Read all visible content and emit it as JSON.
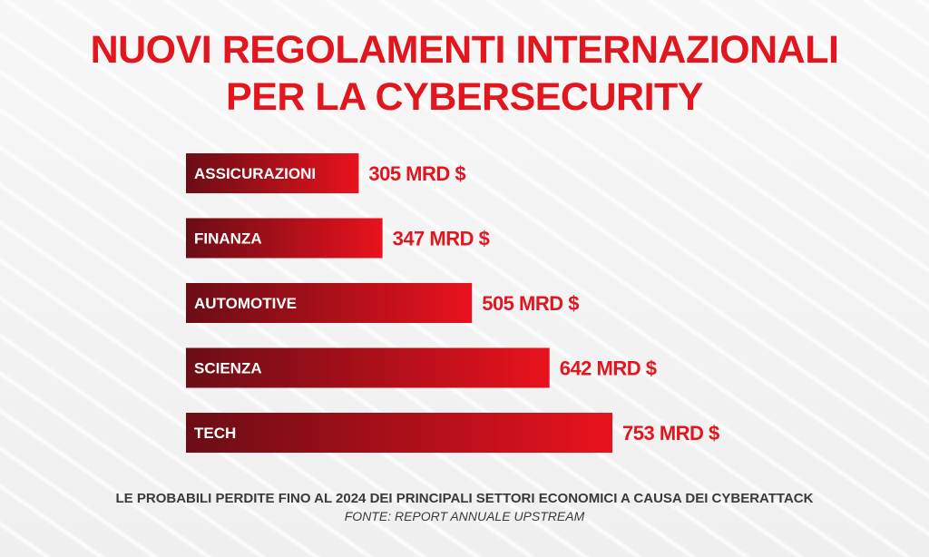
{
  "colors": {
    "accent": "#e2161f",
    "bar_dark": "#6b0d16",
    "bar_light": "#e8121d",
    "text_dark": "#3a3a3a"
  },
  "chart_data": {
    "type": "bar",
    "orientation": "horizontal",
    "title": [
      "NUOVI REGOLAMENTI INTERNAZIONALI",
      "PER LA CYBERSECURITY"
    ],
    "categories": [
      "ASSICURAZIONI",
      "FINANZA",
      "AUTOMOTIVE",
      "SCIENZA",
      "TECH"
    ],
    "values": [
      305,
      347,
      505,
      642,
      753
    ],
    "value_labels": [
      "305 MRD $",
      "347 MRD $",
      "505 MRD $",
      "642 MRD $",
      "753 MRD $"
    ],
    "unit": "MRD $",
    "xlim": [
      0,
      753
    ],
    "grid": false,
    "legend": "none",
    "subtitle": "LE PROBABILI PERDITE FINO AL 2024 DEI PRINCIPALI  SETTORI ECONOMICI A CAUSA DEI CYBERATTACK",
    "source": "FONTE: REPORT ANNUALE UPSTREAM"
  }
}
